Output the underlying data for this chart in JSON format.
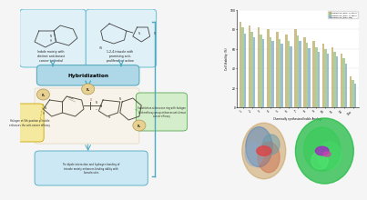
{
  "background_color": "#f5f5f5",
  "box1_text": "Indole moiety with\ndistinct anti-breast\ncancer potential",
  "box2_text": "1,2,4-triazole with\npromising anti-\nproliferative action",
  "box_edge_color": "#6bbdd4",
  "box_face_color": "#dff0f7",
  "hybridization_text": "Hybridization",
  "hyb_bg": "#aed8e8",
  "hyb_edge": "#5aacbe",
  "arrow_color": "#4da8c0",
  "note1_text": "Halogen at 5th position of indole\nenhances the anti-cancer efficacy",
  "note1_face": "#f5e9a0",
  "note1_edge": "#c8a800",
  "note2_text": "Substitution at benzene ring with halogen\nand methoxy group enhances anti-breast\ncancer efficacy",
  "note2_face": "#d4edca",
  "note2_edge": "#5aaa55",
  "note3_text": "The dipole interaction and hydrogen bonding of\ntriazole moiety enhances binding ability with\nbiomolecules",
  "note3_face": "#cce8f4",
  "note3_edge": "#4da8c0",
  "bracket_color": "#4da8c0",
  "bar_series": [
    {
      "label": "Compound (MCF-7) 24hrs",
      "color": "#c8b87c",
      "values": [
        88,
        84,
        82,
        80,
        78,
        75,
        80,
        72,
        68,
        65,
        62,
        55,
        32
      ]
    },
    {
      "label": "Compound (MCF-7) 48hrs",
      "color": "#a8c890",
      "values": [
        82,
        78,
        75,
        72,
        70,
        68,
        74,
        66,
        62,
        60,
        57,
        50,
        28
      ]
    },
    {
      "label": "Compound (MDA-MB)",
      "color": "#90b8cc",
      "values": [
        76,
        72,
        70,
        68,
        65,
        63,
        68,
        61,
        57,
        55,
        52,
        45,
        24
      ]
    }
  ],
  "bar_xlabels": [
    "1",
    "2",
    "3",
    "4",
    "5",
    "6",
    "7",
    "8",
    "9",
    "10",
    "11",
    "12",
    "Dox"
  ],
  "bar_xlabel": "Chemically synthesized Indole Analogs",
  "bar_ylabel": "Cell Viability (%)",
  "bar_ylim": [
    0,
    100
  ],
  "bar_yticks": [
    0,
    20,
    40,
    60,
    80,
    100
  ],
  "bar_width": 0.25,
  "legend_labels": [
    "Compound (MCF-7) 24hrs",
    "Compound (MCF-7) 48hrs",
    "Compound (MDA-MB)"
  ],
  "legend_colors": [
    "#c8b87c",
    "#a8c890",
    "#90b8cc"
  ],
  "mol_colors_left": [
    "#c8a060",
    "#4a7fbd",
    "#cc6644",
    "#4488aa"
  ],
  "mol_colors_right": [
    "#22aa44",
    "#33cc55",
    "#8855bb"
  ]
}
